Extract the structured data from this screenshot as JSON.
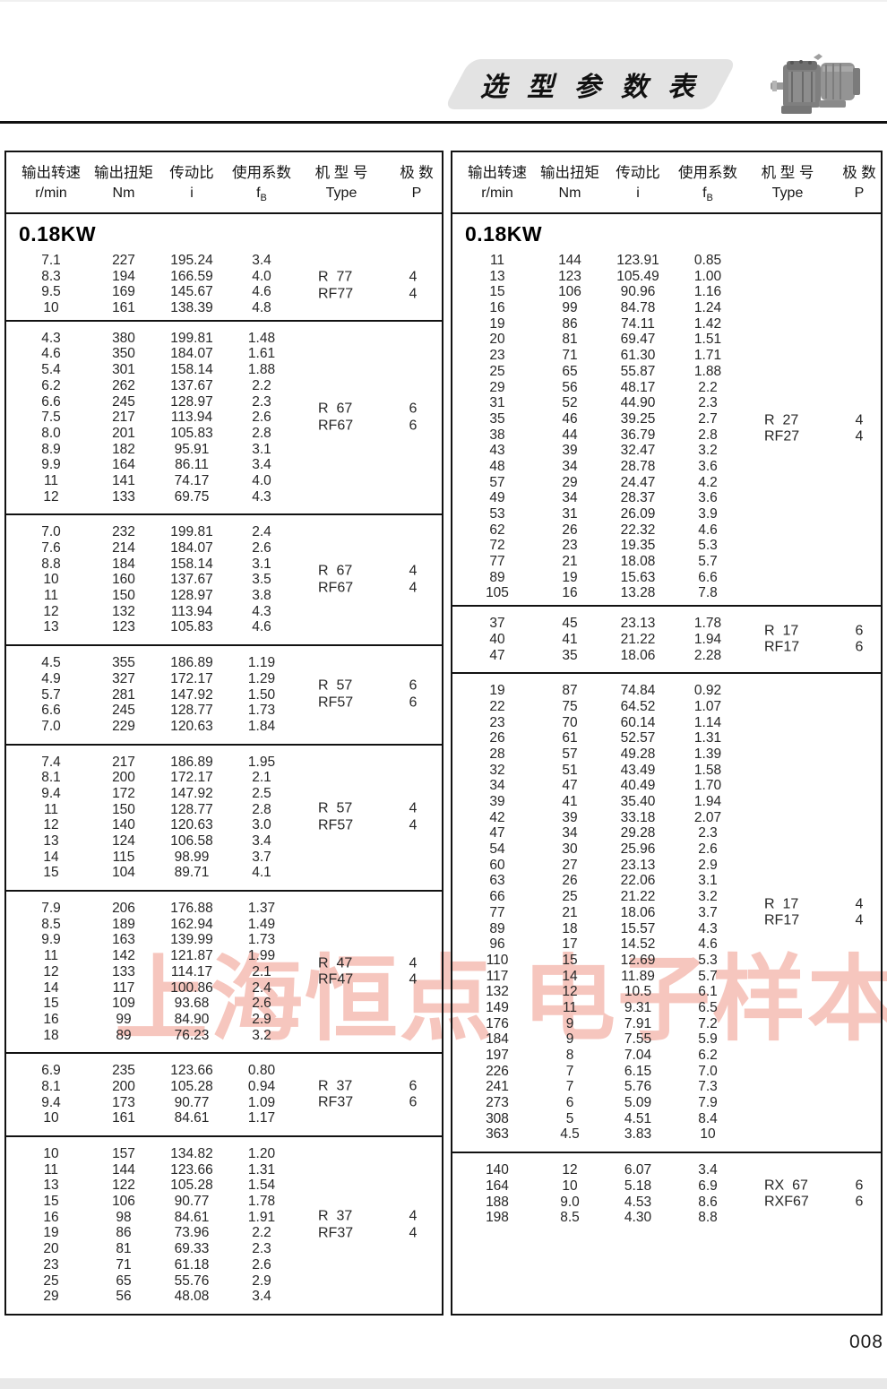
{
  "page": {
    "title_banner": "选 型 参 数 表",
    "watermark": "上海恒点 电子样本",
    "page_number": "008"
  },
  "icons": {
    "motor_image": "gear-motor-photo"
  },
  "colors": {
    "banner_bg": "#e3e3e3",
    "watermark_pink": "#f6c6be",
    "table_border": "#121212",
    "bottom_strip": "#e8e8e8"
  },
  "table_headers": {
    "col1_cn": "输出转速",
    "col1_unit": "r/min",
    "col2_cn": "输出扭矩",
    "col2_unit": "Nm",
    "col3_cn": "传动比",
    "col3_unit": "i",
    "col4_cn": "使用系数",
    "col4_unit_main": "f",
    "col4_unit_sub": "B",
    "col5_cn": "机 型 号",
    "col5_unit": "Type",
    "col6_cn": "极 数",
    "col6_unit": "P"
  },
  "left_table": {
    "power": "0.18KW",
    "groups": [
      {
        "types": [
          "R  77",
          "RF77"
        ],
        "poles": [
          "4",
          "4"
        ],
        "rows": [
          [
            "7.1",
            "227",
            "195.24",
            "3.4"
          ],
          [
            "8.3",
            "194",
            "166.59",
            "4.0"
          ],
          [
            "9.5",
            "169",
            "145.67",
            "4.6"
          ],
          [
            "10",
            "161",
            "138.39",
            "4.8"
          ]
        ]
      },
      {
        "types": [
          "R  67",
          "RF67"
        ],
        "poles": [
          "6",
          "6"
        ],
        "rows": [
          [
            "4.3",
            "380",
            "199.81",
            "1.48"
          ],
          [
            "4.6",
            "350",
            "184.07",
            "1.61"
          ],
          [
            "5.4",
            "301",
            "158.14",
            "1.88"
          ],
          [
            "6.2",
            "262",
            "137.67",
            "2.2"
          ],
          [
            "6.6",
            "245",
            "128.97",
            "2.3"
          ],
          [
            "7.5",
            "217",
            "113.94",
            "2.6"
          ],
          [
            "8.0",
            "201",
            "105.83",
            "2.8"
          ],
          [
            "8.9",
            "182",
            "95.91",
            "3.1"
          ],
          [
            "9.9",
            "164",
            "86.11",
            "3.4"
          ],
          [
            "11",
            "141",
            "74.17",
            "4.0"
          ],
          [
            "12",
            "133",
            "69.75",
            "4.3"
          ]
        ]
      },
      {
        "types": [
          "R  67",
          "RF67"
        ],
        "poles": [
          "4",
          "4"
        ],
        "rows": [
          [
            "7.0",
            "232",
            "199.81",
            "2.4"
          ],
          [
            "7.6",
            "214",
            "184.07",
            "2.6"
          ],
          [
            "8.8",
            "184",
            "158.14",
            "3.1"
          ],
          [
            "10",
            "160",
            "137.67",
            "3.5"
          ],
          [
            "11",
            "150",
            "128.97",
            "3.8"
          ],
          [
            "12",
            "132",
            "113.94",
            "4.3"
          ],
          [
            "13",
            "123",
            "105.83",
            "4.6"
          ]
        ]
      },
      {
        "types": [
          "R  57",
          "RF57"
        ],
        "poles": [
          "6",
          "6"
        ],
        "rows": [
          [
            "4.5",
            "355",
            "186.89",
            "1.19"
          ],
          [
            "4.9",
            "327",
            "172.17",
            "1.29"
          ],
          [
            "5.7",
            "281",
            "147.92",
            "1.50"
          ],
          [
            "6.6",
            "245",
            "128.77",
            "1.73"
          ],
          [
            "7.0",
            "229",
            "120.63",
            "1.84"
          ]
        ]
      },
      {
        "types": [
          "R  57",
          "RF57"
        ],
        "poles": [
          "4",
          "4"
        ],
        "rows": [
          [
            "7.4",
            "217",
            "186.89",
            "1.95"
          ],
          [
            "8.1",
            "200",
            "172.17",
            "2.1"
          ],
          [
            "9.4",
            "172",
            "147.92",
            "2.5"
          ],
          [
            "11",
            "150",
            "128.77",
            "2.8"
          ],
          [
            "12",
            "140",
            "120.63",
            "3.0"
          ],
          [
            "13",
            "124",
            "106.58",
            "3.4"
          ],
          [
            "14",
            "115",
            "98.99",
            "3.7"
          ],
          [
            "15",
            "104",
            "89.71",
            "4.1"
          ]
        ]
      },
      {
        "types": [
          "R  47",
          "RF47"
        ],
        "poles": [
          "4",
          "4"
        ],
        "rows": [
          [
            "7.9",
            "206",
            "176.88",
            "1.37"
          ],
          [
            "8.5",
            "189",
            "162.94",
            "1.49"
          ],
          [
            "9.9",
            "163",
            "139.99",
            "1.73"
          ],
          [
            "11",
            "142",
            "121.87",
            "1.99"
          ],
          [
            "12",
            "133",
            "114.17",
            "2.1"
          ],
          [
            "14",
            "117",
            "100.86",
            "2.4"
          ],
          [
            "15",
            "109",
            "93.68",
            "2.6"
          ],
          [
            "16",
            "99",
            "84.90",
            "2.9"
          ],
          [
            "18",
            "89",
            "76.23",
            "3.2"
          ]
        ]
      },
      {
        "types": [
          "R  37",
          "RF37"
        ],
        "poles": [
          "6",
          "6"
        ],
        "rows": [
          [
            "6.9",
            "235",
            "123.66",
            "0.80"
          ],
          [
            "8.1",
            "200",
            "105.28",
            "0.94"
          ],
          [
            "9.4",
            "173",
            "90.77",
            "1.09"
          ],
          [
            "10",
            "161",
            "84.61",
            "1.17"
          ]
        ]
      },
      {
        "types": [
          "R  37",
          "RF37"
        ],
        "poles": [
          "4",
          "4"
        ],
        "rows": [
          [
            "10",
            "157",
            "134.82",
            "1.20"
          ],
          [
            "11",
            "144",
            "123.66",
            "1.31"
          ],
          [
            "13",
            "122",
            "105.28",
            "1.54"
          ],
          [
            "15",
            "106",
            "90.77",
            "1.78"
          ],
          [
            "16",
            "98",
            "84.61",
            "1.91"
          ],
          [
            "19",
            "86",
            "73.96",
            "2.2"
          ],
          [
            "20",
            "81",
            "69.33",
            "2.3"
          ],
          [
            "23",
            "71",
            "61.18",
            "2.6"
          ],
          [
            "25",
            "65",
            "55.76",
            "2.9"
          ],
          [
            "29",
            "56",
            "48.08",
            "3.4"
          ]
        ]
      }
    ]
  },
  "right_table": {
    "power": "0.18KW",
    "groups": [
      {
        "types": [
          "R  27",
          "RF27"
        ],
        "poles": [
          "4",
          "4"
        ],
        "rows": [
          [
            "11",
            "144",
            "123.91",
            "0.85"
          ],
          [
            "13",
            "123",
            "105.49",
            "1.00"
          ],
          [
            "15",
            "106",
            "90.96",
            "1.16"
          ],
          [
            "16",
            "99",
            "84.78",
            "1.24"
          ],
          [
            "19",
            "86",
            "74.11",
            "1.42"
          ],
          [
            "20",
            "81",
            "69.47",
            "1.51"
          ],
          [
            "23",
            "71",
            "61.30",
            "1.71"
          ],
          [
            "25",
            "65",
            "55.87",
            "1.88"
          ],
          [
            "29",
            "56",
            "48.17",
            "2.2"
          ],
          [
            "31",
            "52",
            "44.90",
            "2.3"
          ],
          [
            "35",
            "46",
            "39.25",
            "2.7"
          ],
          [
            "38",
            "44",
            "36.79",
            "2.8"
          ],
          [
            "43",
            "39",
            "32.47",
            "3.2"
          ],
          [
            "48",
            "34",
            "28.78",
            "3.6"
          ],
          [
            "57",
            "29",
            "24.47",
            "4.2"
          ],
          [
            "49",
            "34",
            "28.37",
            "3.6"
          ],
          [
            "53",
            "31",
            "26.09",
            "3.9"
          ],
          [
            "62",
            "26",
            "22.32",
            "4.6"
          ],
          [
            "72",
            "23",
            "19.35",
            "5.3"
          ],
          [
            "77",
            "21",
            "18.08",
            "5.7"
          ],
          [
            "89",
            "19",
            "15.63",
            "6.6"
          ],
          [
            "105",
            "16",
            "13.28",
            "7.8"
          ]
        ]
      },
      {
        "types": [
          "R  17",
          "RF17"
        ],
        "poles": [
          "6",
          "6"
        ],
        "rows": [
          [
            "37",
            "45",
            "23.13",
            "1.78"
          ],
          [
            "40",
            "41",
            "21.22",
            "1.94"
          ],
          [
            "47",
            "35",
            "18.06",
            "2.28"
          ]
        ]
      },
      {
        "types": [
          "R  17",
          "RF17"
        ],
        "poles": [
          "4",
          "4"
        ],
        "rows": [
          [
            "19",
            "87",
            "74.84",
            "0.92"
          ],
          [
            "22",
            "75",
            "64.52",
            "1.07"
          ],
          [
            "23",
            "70",
            "60.14",
            "1.14"
          ],
          [
            "26",
            "61",
            "52.57",
            "1.31"
          ],
          [
            "28",
            "57",
            "49.28",
            "1.39"
          ],
          [
            "32",
            "51",
            "43.49",
            "1.58"
          ],
          [
            "34",
            "47",
            "40.49",
            "1.70"
          ],
          [
            "39",
            "41",
            "35.40",
            "1.94"
          ],
          [
            "42",
            "39",
            "33.18",
            "2.07"
          ],
          [
            "47",
            "34",
            "29.28",
            "2.3"
          ],
          [
            "54",
            "30",
            "25.96",
            "2.6"
          ],
          [
            "60",
            "27",
            "23.13",
            "2.9"
          ],
          [
            "63",
            "26",
            "22.06",
            "3.1"
          ],
          [
            "66",
            "25",
            "21.22",
            "3.2"
          ],
          [
            "77",
            "21",
            "18.06",
            "3.7"
          ],
          [
            "89",
            "18",
            "15.57",
            "4.3"
          ],
          [
            "96",
            "17",
            "14.52",
            "4.6"
          ],
          [
            "110",
            "15",
            "12.69",
            "5.3"
          ],
          [
            "117",
            "14",
            "11.89",
            "5.7"
          ],
          [
            "132",
            "12",
            "10.5",
            "6.1"
          ],
          [
            "149",
            "11",
            "9.31",
            "6.5"
          ],
          [
            "176",
            "9",
            "7.91",
            "7.2"
          ],
          [
            "184",
            "9",
            "7.55",
            "5.9"
          ],
          [
            "197",
            "8",
            "7.04",
            "6.2"
          ],
          [
            "226",
            "7",
            "6.15",
            "7.0"
          ],
          [
            "241",
            "7",
            "5.76",
            "7.3"
          ],
          [
            "273",
            "6",
            "5.09",
            "7.9"
          ],
          [
            "308",
            "5",
            "4.51",
            "8.4"
          ],
          [
            "363",
            "4.5",
            "3.83",
            "10"
          ]
        ]
      },
      {
        "types": [
          "RX  67",
          "RXF67"
        ],
        "poles": [
          "6",
          "6"
        ],
        "rows": [
          [
            "140",
            "12",
            "6.07",
            "3.4"
          ],
          [
            "164",
            "10",
            "5.18",
            "6.9"
          ],
          [
            "188",
            "9.0",
            "4.53",
            "8.6"
          ],
          [
            "198",
            "8.5",
            "4.30",
            "8.8"
          ]
        ]
      }
    ]
  }
}
